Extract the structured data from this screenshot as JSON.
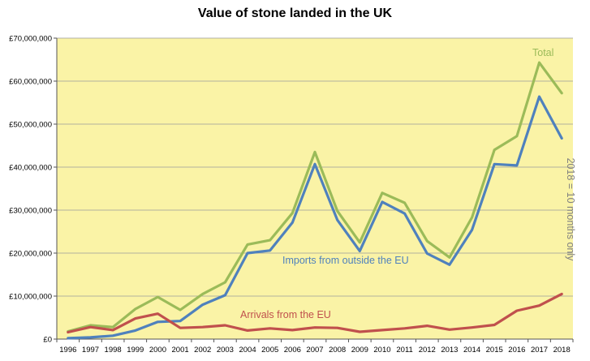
{
  "chart_data": {
    "type": "line",
    "title": "Value of stone landed in the UK",
    "x": [
      "1996",
      "1997",
      "1998",
      "1999",
      "2000",
      "2001",
      "2002",
      "2003",
      "2004",
      "2005",
      "2006",
      "2007",
      "2008",
      "2009",
      "2010",
      "2011",
      "2012",
      "2013",
      "2014",
      "2015",
      "2016",
      "2017",
      "2018"
    ],
    "y_ticks": [
      "£0",
      "£10,000,000",
      "£20,000,000",
      "£30,000,000",
      "£40,000,000",
      "£50,000,000",
      "£60,000,000",
      "£70,000,000"
    ],
    "ylim": [
      0,
      70000000
    ],
    "grid": true,
    "background_color": "#faf3a6",
    "series": [
      {
        "name": "Total",
        "color": "#9bbb59",
        "values": [
          1800000,
          3200000,
          2800000,
          7000000,
          9800000,
          6800000,
          10500000,
          13200000,
          22000000,
          23000000,
          29300000,
          43500000,
          29800000,
          22500000,
          34000000,
          31700000,
          22800000,
          19000000,
          28300000,
          44000000,
          47200000,
          64300000,
          57200000
        ]
      },
      {
        "name": "Imports from outside the EU",
        "color": "#4f81bd",
        "values": [
          200000,
          400000,
          800000,
          2000000,
          4000000,
          4200000,
          8000000,
          10200000,
          20000000,
          20600000,
          27100000,
          40700000,
          27700000,
          20500000,
          31900000,
          29200000,
          19900000,
          17300000,
          25400000,
          40700000,
          40400000,
          56400000,
          46700000
        ]
      },
      {
        "name": "Arrivals from the EU",
        "color": "#c0504d",
        "values": [
          1600000,
          2800000,
          2100000,
          4800000,
          5900000,
          2600000,
          2800000,
          3200000,
          2000000,
          2500000,
          2100000,
          2700000,
          2600000,
          1700000,
          2100000,
          2500000,
          3100000,
          2200000,
          2700000,
          3300000,
          6600000,
          7800000,
          10500000
        ]
      }
    ],
    "annotations": {
      "note": "2018 = 10 months only"
    }
  }
}
